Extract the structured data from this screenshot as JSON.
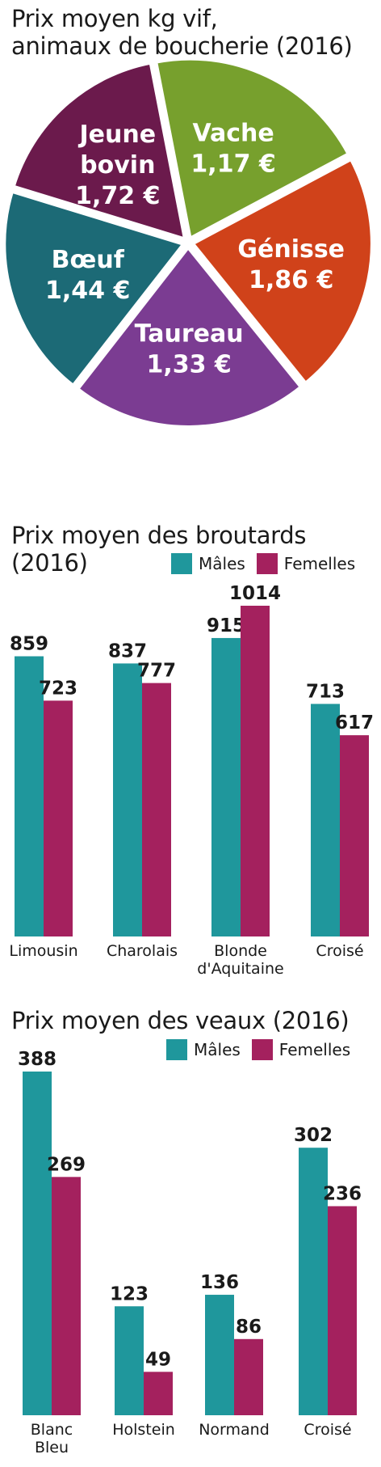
{
  "colors": {
    "males": "#1f979c",
    "females": "#a4215e",
    "jeune_bovin": "#6b1a4c",
    "vache": "#77a02d",
    "genisse": "#d0421a",
    "taureau": "#7b3c92",
    "boeuf": "#1c6a76"
  },
  "chart_data": [
    {
      "type": "pie",
      "title_line1": "Prix moyen kg vif,",
      "title_line2": "animaux de boucherie (2016)",
      "slices": [
        {
          "name": "Vache",
          "value": 1.17,
          "label": "1,17 €",
          "color_key": "vache"
        },
        {
          "name": "Génisse",
          "value": 1.86,
          "label": "1,86 €",
          "color_key": "genisse"
        },
        {
          "name": "Taureau",
          "value": 1.33,
          "label": "1,33 €",
          "color_key": "taureau"
        },
        {
          "name": "Bœuf",
          "value": 1.44,
          "label": "1,44 €",
          "color_key": "boeuf"
        },
        {
          "name": "Jeune bovin",
          "name_lines": [
            "Jeune",
            "bovin"
          ],
          "value": 1.72,
          "label": "1,72 €",
          "color_key": "jeune_bovin"
        }
      ]
    },
    {
      "type": "bar",
      "title_line1": "Prix moyen des broutards",
      "title_line2": "(2016)",
      "legend": [
        "Mâles",
        "Femelles"
      ],
      "categories": [
        [
          "Limousin"
        ],
        [
          "Charolais"
        ],
        [
          "Blonde",
          "d'Aquitaine"
        ],
        [
          "Croisé"
        ]
      ],
      "series": [
        {
          "name": "Mâles",
          "values": [
            859,
            837,
            915,
            713
          ]
        },
        {
          "name": "Femelles",
          "values": [
            723,
            777,
            1014,
            617
          ]
        }
      ]
    },
    {
      "type": "bar",
      "title_line1": "Prix moyen des veaux (2016)",
      "legend": [
        "Mâles",
        "Femelles"
      ],
      "categories": [
        [
          "Blanc",
          "Bleu"
        ],
        [
          "Holstein"
        ],
        [
          "Normand"
        ],
        [
          "Croisé"
        ]
      ],
      "series": [
        {
          "name": "Mâles",
          "values": [
            388,
            123,
            136,
            302
          ]
        },
        {
          "name": "Femelles",
          "values": [
            269,
            49,
            86,
            236
          ]
        }
      ]
    }
  ]
}
